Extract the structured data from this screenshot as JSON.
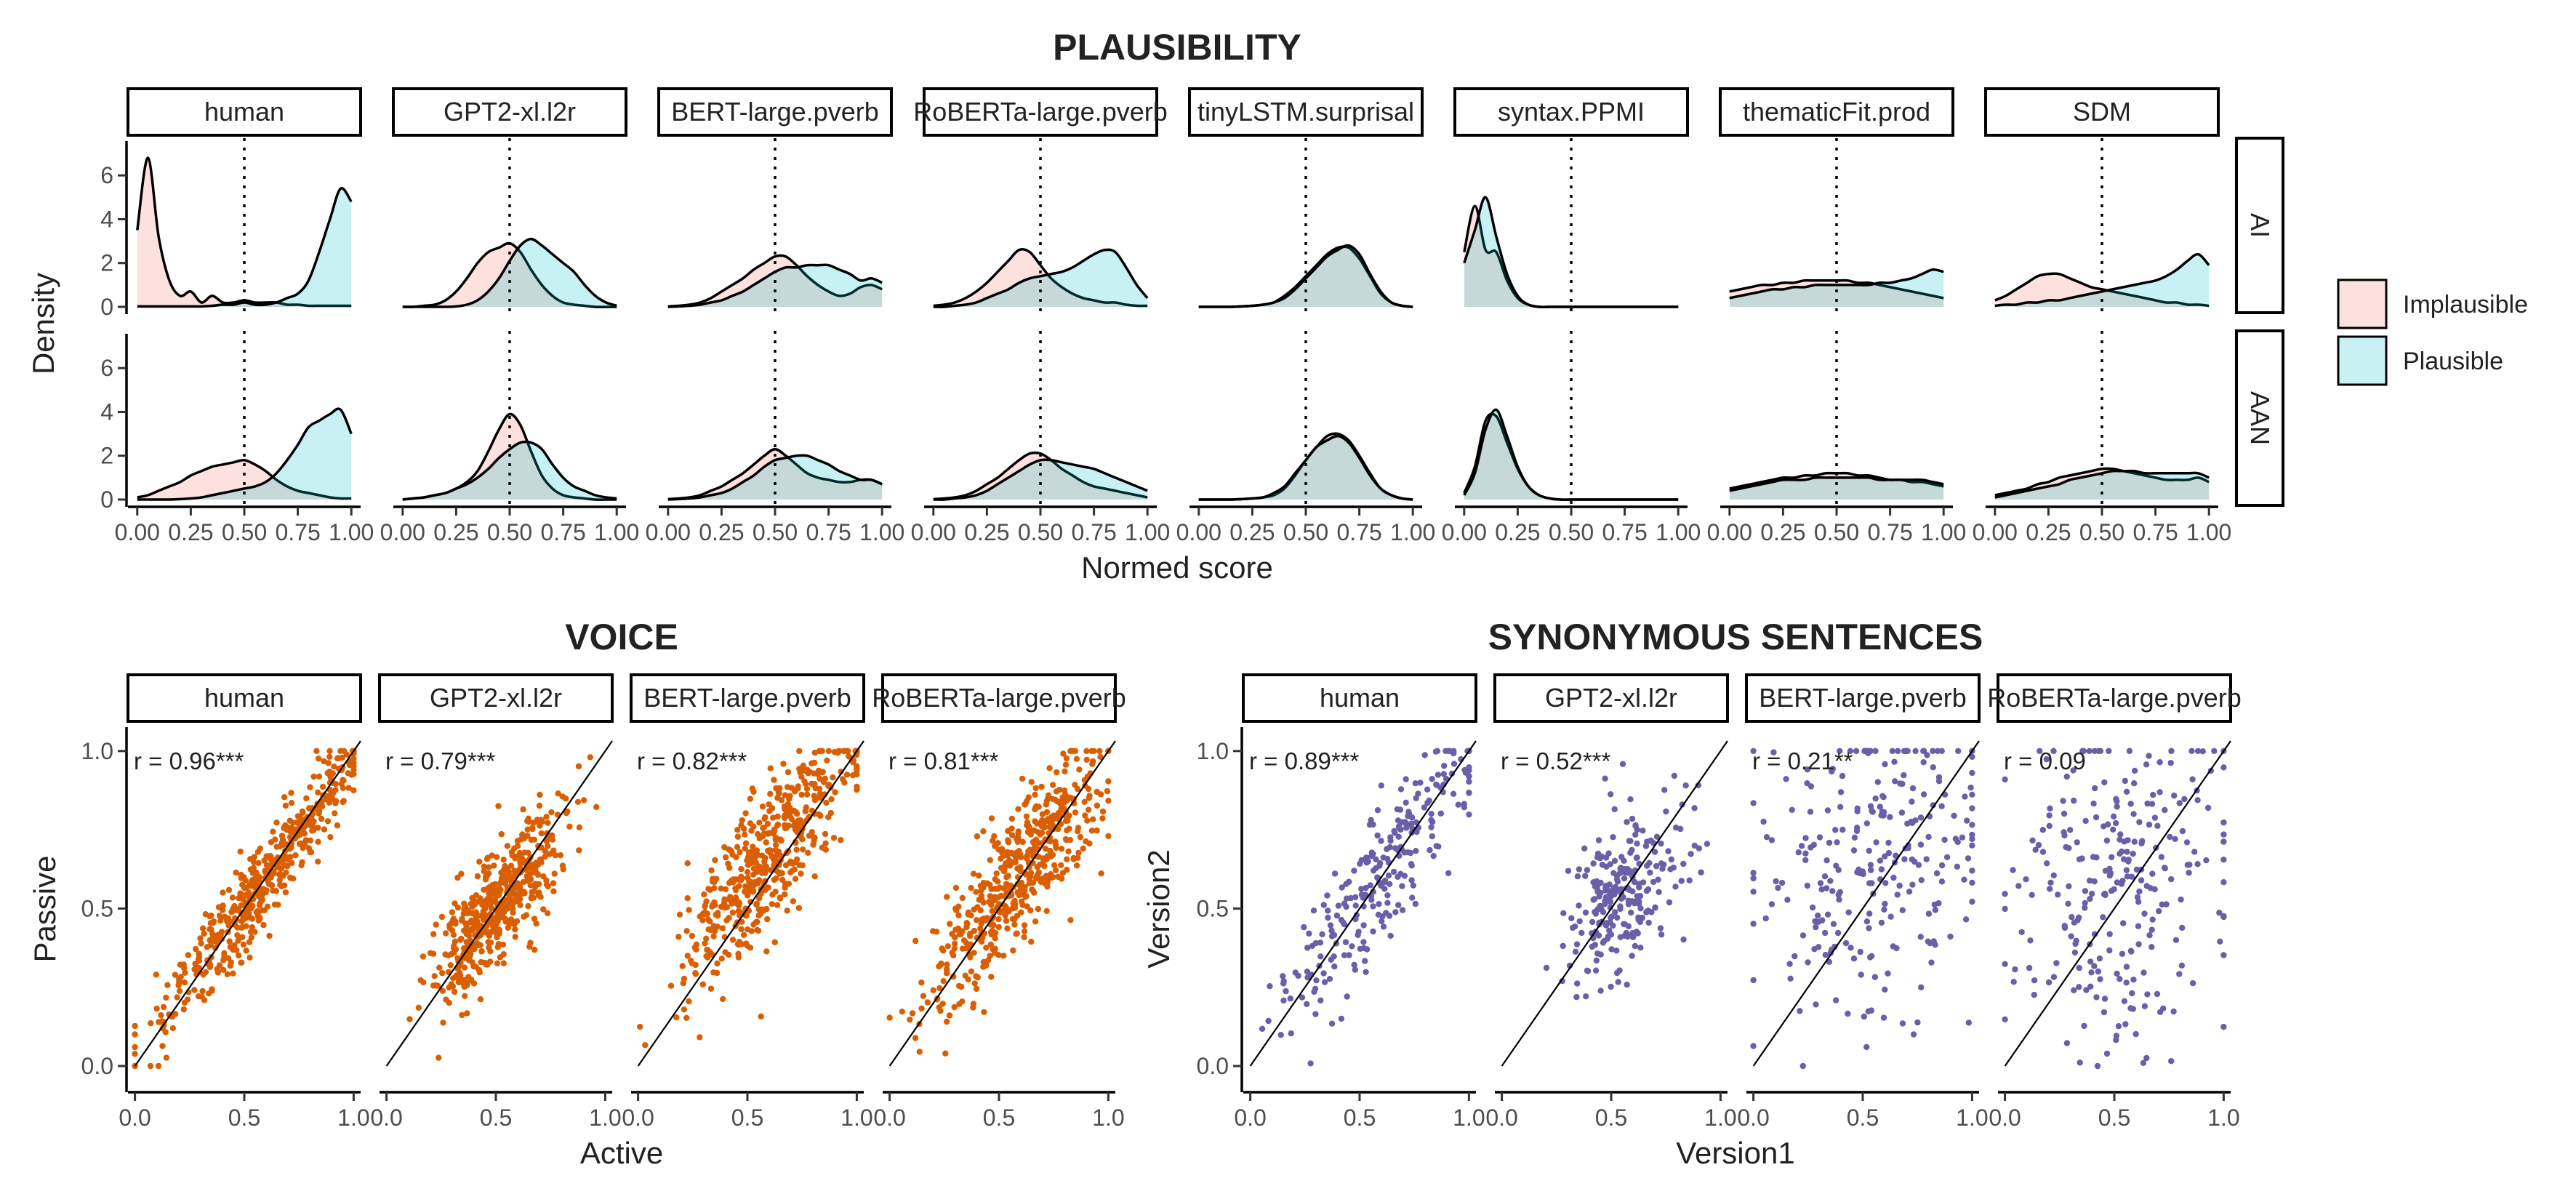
{
  "colors": {
    "implausible_fill": "#F8766D",
    "plausible_fill": "#00BFC4",
    "voice_points": "#D95F02",
    "synonymous_points": "#6A5FA8",
    "reference_line": "#000000",
    "strip_border": "#000000"
  },
  "chart_data": [
    {
      "type": "area",
      "subtype": "density",
      "title": "PLAUSIBILITY",
      "xlabel": "Normed score",
      "ylabel": "Density",
      "xlim": [
        0,
        1
      ],
      "ylim": [
        0,
        7.5
      ],
      "x_ticks": [
        "0.00",
        "0.25",
        "0.50",
        "0.75",
        "1.00"
      ],
      "y_ticks": [
        "0",
        "2",
        "4",
        "6"
      ],
      "reference_vline": 0.5,
      "models": [
        "human",
        "GPT2-xl.l2r",
        "BERT-large.pverb",
        "RoBERTa-large.pverb",
        "tinyLSTM.surprisal",
        "syntax.PPMI",
        "thematicFit.prod",
        "SDM"
      ],
      "rows": [
        "AI",
        "AAN"
      ],
      "legend": {
        "position": "right",
        "entries": [
          "Implausible",
          "Plausible"
        ]
      },
      "x": [
        0,
        0.05,
        0.1,
        0.15,
        0.2,
        0.25,
        0.3,
        0.35,
        0.4,
        0.45,
        0.5,
        0.55,
        0.6,
        0.65,
        0.7,
        0.75,
        0.8,
        0.85,
        0.9,
        0.95,
        1.0
      ],
      "series": {
        "AI": [
          {
            "Implausible": [
              3.5,
              6.8,
              3.2,
              1.2,
              0.5,
              0.7,
              0.2,
              0.5,
              0.2,
              0.2,
              0.3,
              0.2,
              0.2,
              0.2,
              0.1,
              0.1,
              0.05,
              0.05,
              0.05,
              0.05,
              0.05
            ],
            "Plausible": [
              0.02,
              0.02,
              0.02,
              0.02,
              0.02,
              0.02,
              0.02,
              0.05,
              0.1,
              0.1,
              0.2,
              0.1,
              0.1,
              0.2,
              0.4,
              0.6,
              1.2,
              2.5,
              4.0,
              5.4,
              4.8
            ]
          },
          {
            "Implausible": [
              0.0,
              0.0,
              0.05,
              0.1,
              0.3,
              0.7,
              1.3,
              2.0,
              2.5,
              2.7,
              2.9,
              2.5,
              1.7,
              1.0,
              0.5,
              0.2,
              0.1,
              0.05,
              0.0,
              0.0,
              0.0
            ],
            "Plausible": [
              0.0,
              0.0,
              0.0,
              0.0,
              0.0,
              0.02,
              0.1,
              0.3,
              0.7,
              1.3,
              2.1,
              2.8,
              3.1,
              2.8,
              2.4,
              2.0,
              1.6,
              1.0,
              0.5,
              0.2,
              0.05
            ]
          },
          {
            "Implausible": [
              0.02,
              0.05,
              0.1,
              0.2,
              0.4,
              0.7,
              1.0,
              1.3,
              1.7,
              2.0,
              2.3,
              2.3,
              1.9,
              1.4,
              1.0,
              0.7,
              0.5,
              0.6,
              0.9,
              1.0,
              0.8
            ],
            "Plausible": [
              0.0,
              0.02,
              0.05,
              0.1,
              0.2,
              0.3,
              0.5,
              0.7,
              1.0,
              1.3,
              1.6,
              1.8,
              1.8,
              1.9,
              1.9,
              1.9,
              1.7,
              1.5,
              1.2,
              1.3,
              1.1
            ]
          },
          {
            "Implausible": [
              0.05,
              0.1,
              0.2,
              0.4,
              0.7,
              1.1,
              1.6,
              2.1,
              2.6,
              2.5,
              1.9,
              1.3,
              0.9,
              0.6,
              0.4,
              0.3,
              0.2,
              0.2,
              0.1,
              0.05,
              0.05
            ],
            "Plausible": [
              0.0,
              0.0,
              0.05,
              0.1,
              0.2,
              0.4,
              0.6,
              0.8,
              1.1,
              1.3,
              1.4,
              1.5,
              1.6,
              1.8,
              2.1,
              2.4,
              2.6,
              2.5,
              1.8,
              1.0,
              0.4
            ]
          },
          {
            "Implausible": [
              0.0,
              0.0,
              0.0,
              0.0,
              0.02,
              0.05,
              0.1,
              0.2,
              0.5,
              0.9,
              1.4,
              1.9,
              2.4,
              2.7,
              2.7,
              2.2,
              1.4,
              0.6,
              0.2,
              0.05,
              0.0
            ],
            "Plausible": [
              0.0,
              0.0,
              0.0,
              0.0,
              0.02,
              0.05,
              0.1,
              0.2,
              0.4,
              0.8,
              1.3,
              1.8,
              2.3,
              2.6,
              2.8,
              2.4,
              1.5,
              0.7,
              0.2,
              0.05,
              0.0
            ]
          },
          {
            "Implausible": [
              2.5,
              4.6,
              2.6,
              2.5,
              1.2,
              0.4,
              0.1,
              0.0,
              0.0,
              0.0,
              0.0,
              0.0,
              0.0,
              0.0,
              0.0,
              0.0,
              0.0,
              0.0,
              0.0,
              0.0,
              0.0
            ],
            "Plausible": [
              2.0,
              3.5,
              5.0,
              3.2,
              1.5,
              0.5,
              0.1,
              0.0,
              0.0,
              0.0,
              0.0,
              0.0,
              0.0,
              0.0,
              0.0,
              0.0,
              0.0,
              0.0,
              0.0,
              0.0,
              0.0
            ]
          },
          {
            "Implausible": [
              0.7,
              0.8,
              0.9,
              1.0,
              1.0,
              1.1,
              1.1,
              1.2,
              1.2,
              1.2,
              1.2,
              1.2,
              1.1,
              1.1,
              1.0,
              0.9,
              0.8,
              0.7,
              0.6,
              0.5,
              0.4
            ],
            "Plausible": [
              0.4,
              0.5,
              0.6,
              0.7,
              0.8,
              0.8,
              0.9,
              0.9,
              1.0,
              1.0,
              1.0,
              1.0,
              1.0,
              1.0,
              1.1,
              1.1,
              1.2,
              1.3,
              1.5,
              1.7,
              1.6
            ]
          },
          {
            "Implausible": [
              0.3,
              0.5,
              0.8,
              1.1,
              1.4,
              1.5,
              1.5,
              1.3,
              1.1,
              0.9,
              0.8,
              0.7,
              0.6,
              0.5,
              0.4,
              0.3,
              0.2,
              0.2,
              0.1,
              0.1,
              0.05
            ],
            "Plausible": [
              0.05,
              0.1,
              0.1,
              0.2,
              0.2,
              0.3,
              0.3,
              0.4,
              0.5,
              0.6,
              0.7,
              0.8,
              0.9,
              1.0,
              1.1,
              1.2,
              1.4,
              1.7,
              2.1,
              2.4,
              1.9
            ]
          }
        ],
        "AAN": [
          {
            "Implausible": [
              0.1,
              0.2,
              0.4,
              0.6,
              0.8,
              1.1,
              1.3,
              1.5,
              1.6,
              1.7,
              1.8,
              1.6,
              1.3,
              0.9,
              0.6,
              0.4,
              0.3,
              0.2,
              0.1,
              0.05,
              0.05
            ],
            "Plausible": [
              0.0,
              0.0,
              0.0,
              0.0,
              0.02,
              0.05,
              0.1,
              0.2,
              0.3,
              0.4,
              0.5,
              0.6,
              0.8,
              1.2,
              1.8,
              2.5,
              3.3,
              3.6,
              3.9,
              4.1,
              3.0
            ]
          },
          {
            "Implausible": [
              0.0,
              0.05,
              0.1,
              0.2,
              0.3,
              0.5,
              0.8,
              1.3,
              2.2,
              3.2,
              3.9,
              3.4,
              2.2,
              1.1,
              0.5,
              0.2,
              0.1,
              0.05,
              0.0,
              0.0,
              0.0
            ],
            "Plausible": [
              0.0,
              0.05,
              0.1,
              0.2,
              0.3,
              0.5,
              0.7,
              1.0,
              1.4,
              1.9,
              2.3,
              2.6,
              2.6,
              2.3,
              1.6,
              1.0,
              0.6,
              0.4,
              0.2,
              0.1,
              0.05
            ]
          },
          {
            "Implausible": [
              0.02,
              0.05,
              0.1,
              0.2,
              0.4,
              0.6,
              0.9,
              1.2,
              1.6,
              2.0,
              2.3,
              2.0,
              1.6,
              1.2,
              1.0,
              0.9,
              0.8,
              0.8,
              0.9,
              0.9,
              0.7
            ],
            "Plausible": [
              0.0,
              0.02,
              0.05,
              0.1,
              0.2,
              0.3,
              0.5,
              0.8,
              1.1,
              1.5,
              1.8,
              1.9,
              2.0,
              2.0,
              1.8,
              1.6,
              1.3,
              1.1,
              0.9,
              0.9,
              0.7
            ]
          },
          {
            "Implausible": [
              0.02,
              0.05,
              0.1,
              0.2,
              0.4,
              0.7,
              1.0,
              1.4,
              1.8,
              2.1,
              2.1,
              1.8,
              1.4,
              1.1,
              0.8,
              0.6,
              0.5,
              0.4,
              0.3,
              0.2,
              0.1
            ],
            "Plausible": [
              0.0,
              0.0,
              0.05,
              0.1,
              0.2,
              0.4,
              0.7,
              1.0,
              1.3,
              1.6,
              1.8,
              1.8,
              1.7,
              1.6,
              1.5,
              1.4,
              1.2,
              1.0,
              0.8,
              0.6,
              0.4
            ]
          },
          {
            "Implausible": [
              0.0,
              0.0,
              0.0,
              0.0,
              0.02,
              0.05,
              0.1,
              0.2,
              0.5,
              1.1,
              1.8,
              2.4,
              2.9,
              3.0,
              2.7,
              2.0,
              1.2,
              0.5,
              0.2,
              0.05,
              0.0
            ],
            "Plausible": [
              0.0,
              0.0,
              0.0,
              0.0,
              0.02,
              0.05,
              0.1,
              0.3,
              0.6,
              1.2,
              1.8,
              2.4,
              2.7,
              2.9,
              2.6,
              1.9,
              1.1,
              0.5,
              0.2,
              0.05,
              0.0
            ]
          },
          {
            "Implausible": [
              0.3,
              1.5,
              3.6,
              3.8,
              2.6,
              1.4,
              0.6,
              0.2,
              0.05,
              0.0,
              0.0,
              0.0,
              0.0,
              0.0,
              0.0,
              0.0,
              0.0,
              0.0,
              0.0,
              0.0,
              0.0
            ],
            "Plausible": [
              0.2,
              1.2,
              3.2,
              4.1,
              2.9,
              1.5,
              0.6,
              0.2,
              0.05,
              0.0,
              0.0,
              0.0,
              0.0,
              0.0,
              0.0,
              0.0,
              0.0,
              0.0,
              0.0,
              0.0,
              0.0
            ]
          },
          {
            "Implausible": [
              0.5,
              0.6,
              0.7,
              0.8,
              0.9,
              1.0,
              1.0,
              1.1,
              1.1,
              1.2,
              1.2,
              1.2,
              1.1,
              1.1,
              1.0,
              0.9,
              0.9,
              0.8,
              0.8,
              0.7,
              0.6
            ],
            "Plausible": [
              0.4,
              0.5,
              0.6,
              0.7,
              0.8,
              0.9,
              0.9,
              0.9,
              1.0,
              1.0,
              1.0,
              1.0,
              1.0,
              1.0,
              0.9,
              0.9,
              0.9,
              0.9,
              0.9,
              0.8,
              0.7
            ]
          },
          {
            "Implausible": [
              0.2,
              0.3,
              0.4,
              0.5,
              0.7,
              0.8,
              1.0,
              1.1,
              1.2,
              1.3,
              1.4,
              1.4,
              1.3,
              1.2,
              1.1,
              1.0,
              0.9,
              0.9,
              0.9,
              1.0,
              0.8
            ],
            "Plausible": [
              0.1,
              0.2,
              0.3,
              0.4,
              0.5,
              0.6,
              0.7,
              0.9,
              1.0,
              1.1,
              1.2,
              1.3,
              1.3,
              1.3,
              1.2,
              1.2,
              1.2,
              1.2,
              1.2,
              1.2,
              1.0
            ]
          }
        ]
      }
    },
    {
      "type": "scatter",
      "title": "VOICE",
      "xlabel": "Active",
      "ylabel": "Passive",
      "xlim": [
        0,
        1
      ],
      "ylim": [
        0,
        1
      ],
      "x_ticks": [
        "0.0",
        "0.5",
        "1.0"
      ],
      "y_ticks": [
        "0.0",
        "0.5",
        "1.0"
      ],
      "reference_line": "y = x",
      "panels": [
        {
          "name": "human",
          "r_label": "r = 0.96***",
          "r": 0.96,
          "center_x": 0.6,
          "center_y": 0.6,
          "spread": 0.25,
          "n": 520
        },
        {
          "name": "GPT2-xl.l2r",
          "r_label": "r = 0.79***",
          "r": 0.79,
          "center_x": 0.52,
          "center_y": 0.52,
          "spread": 0.15,
          "n": 520
        },
        {
          "name": "BERT-large.pverb",
          "r_label": "r = 0.82***",
          "r": 0.82,
          "center_x": 0.6,
          "center_y": 0.67,
          "spread": 0.2,
          "n": 520
        },
        {
          "name": "RoBERTa-large.pverb",
          "r_label": "r = 0.81***",
          "r": 0.81,
          "center_x": 0.6,
          "center_y": 0.62,
          "spread": 0.2,
          "n": 520
        }
      ]
    },
    {
      "type": "scatter",
      "title": "SYNONYMOUS SENTENCES",
      "xlabel": "Version1",
      "ylabel": "Version2",
      "xlim": [
        0,
        1
      ],
      "ylim": [
        0,
        1
      ],
      "x_ticks": [
        "0.0",
        "0.5",
        "1.0"
      ],
      "y_ticks": [
        "0.0",
        "0.5",
        "1.0"
      ],
      "reference_line": "y = x",
      "panels": [
        {
          "name": "human",
          "r_label": "r = 0.89***",
          "r": 0.89,
          "center_x": 0.62,
          "center_y": 0.62,
          "spread": 0.25,
          "n": 260
        },
        {
          "name": "GPT2-xl.l2r",
          "r_label": "r = 0.52***",
          "r": 0.52,
          "center_x": 0.55,
          "center_y": 0.54,
          "spread": 0.14,
          "n": 260
        },
        {
          "name": "BERT-large.pverb",
          "r_label": "r = 0.21**",
          "r": 0.21,
          "center_x": 0.55,
          "center_y": 0.62,
          "spread": 0.25,
          "n": 260
        },
        {
          "name": "RoBERTa-large.pverb",
          "r_label": "r = 0.09",
          "r": 0.09,
          "center_x": 0.55,
          "center_y": 0.6,
          "spread": 0.25,
          "n": 260
        }
      ]
    }
  ]
}
